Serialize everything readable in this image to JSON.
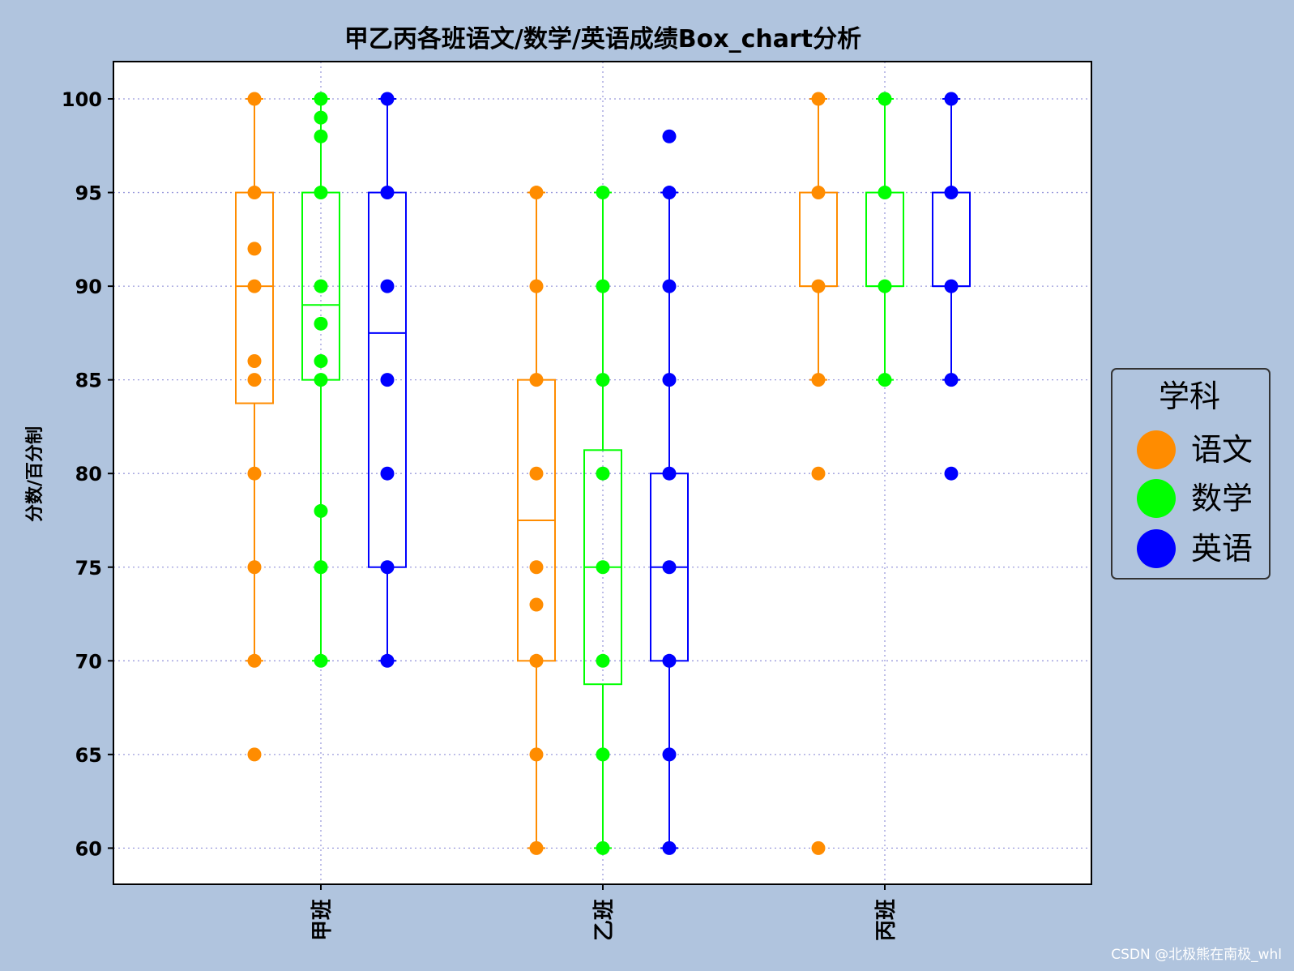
{
  "chart_data": {
    "type": "box",
    "title": "甲乙丙各班语文/数学/英语成绩Box_chart分析",
    "xlabel": "",
    "ylabel": "分数/百分制",
    "ylim": [
      58,
      102
    ],
    "yticks": [
      60,
      65,
      70,
      75,
      80,
      85,
      90,
      95,
      100
    ],
    "categories": [
      "甲班",
      "乙班",
      "丙班"
    ],
    "grid": true,
    "legend": {
      "title": "学科",
      "placement": "right",
      "entries": [
        "语文",
        "数学",
        "英语"
      ]
    },
    "series": [
      {
        "name": "语文",
        "color": "#ff8c00",
        "boxes": [
          {
            "whisker_low": 70,
            "q1": 83.75,
            "median": 90,
            "q3": 95,
            "whisker_high": 100,
            "points": [
              65,
              70,
              75,
              80,
              85,
              86,
              90,
              92,
              95,
              100
            ]
          },
          {
            "whisker_low": 60,
            "q1": 70,
            "median": 77.5,
            "q3": 85,
            "whisker_high": 95,
            "points": [
              60,
              65,
              70,
              73,
              75,
              80,
              85,
              90,
              95
            ]
          },
          {
            "whisker_low": 85,
            "q1": 90,
            "median": 90,
            "q3": 95,
            "whisker_high": 100,
            "points": [
              60,
              80,
              85,
              90,
              95,
              100
            ]
          }
        ]
      },
      {
        "name": "数学",
        "color": "#00ff00",
        "boxes": [
          {
            "whisker_low": 70,
            "q1": 85,
            "median": 89,
            "q3": 95,
            "whisker_high": 100,
            "points": [
              70,
              75,
              78,
              85,
              86,
              88,
              90,
              95,
              98,
              99,
              100
            ]
          },
          {
            "whisker_low": 60,
            "q1": 68.75,
            "median": 75,
            "q3": 81.25,
            "whisker_high": 95,
            "points": [
              60,
              65,
              70,
              75,
              80,
              85,
              90,
              95
            ]
          },
          {
            "whisker_low": 85,
            "q1": 90,
            "median": 90,
            "q3": 95,
            "whisker_high": 100,
            "points": [
              85,
              90,
              95,
              100
            ]
          }
        ]
      },
      {
        "name": "英语",
        "color": "#0000ff",
        "boxes": [
          {
            "whisker_low": 70,
            "q1": 75,
            "median": 87.5,
            "q3": 95,
            "whisker_high": 100,
            "points": [
              70,
              75,
              80,
              85,
              90,
              95,
              100
            ]
          },
          {
            "whisker_low": 60,
            "q1": 70,
            "median": 75,
            "q3": 80,
            "whisker_high": 95,
            "points": [
              60,
              65,
              70,
              75,
              80,
              85,
              90,
              95,
              98
            ]
          },
          {
            "whisker_low": 85,
            "q1": 90,
            "median": 90,
            "q3": 95,
            "whisker_high": 100,
            "points": [
              80,
              85,
              90,
              95,
              100
            ]
          }
        ]
      }
    ]
  },
  "watermark": "CSDN @北极熊在南极_whl"
}
